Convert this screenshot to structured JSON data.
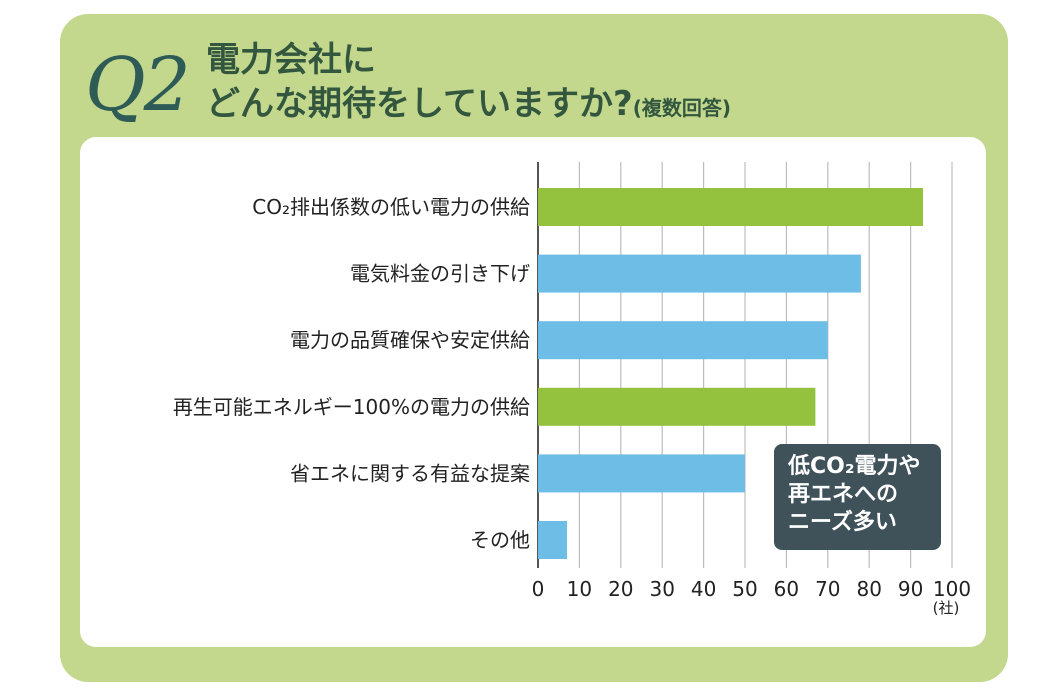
{
  "header": {
    "q_label": "Q2",
    "title_line1": "電力会社に",
    "title_line2": "どんな期待をしていますか?",
    "title_note": "(複数回答)"
  },
  "callout": {
    "line1": "低CO₂電力や",
    "line2": "再エネへの",
    "line3": "ニーズ多い"
  },
  "chart_data": {
    "type": "bar",
    "orientation": "horizontal",
    "title": "",
    "xlabel": "",
    "ylabel": "",
    "x_unit": "(社)",
    "xlim": [
      0,
      100
    ],
    "x_ticks": [
      0,
      10,
      20,
      30,
      40,
      50,
      60,
      70,
      80,
      90,
      100
    ],
    "grid": true,
    "categories": [
      "CO₂排出係数の低い電力の供給",
      "電気料金の引き下げ",
      "電力の品質確保や安定供給",
      "再生可能エネルギー100%の電力の供給",
      "省エネに関する有益な提案",
      "その他"
    ],
    "values": [
      93,
      78,
      70,
      67,
      50,
      7
    ],
    "bar_colors": [
      "#94c13e",
      "#6ebde6",
      "#6ebde6",
      "#94c13e",
      "#6ebde6",
      "#6ebde6"
    ]
  }
}
